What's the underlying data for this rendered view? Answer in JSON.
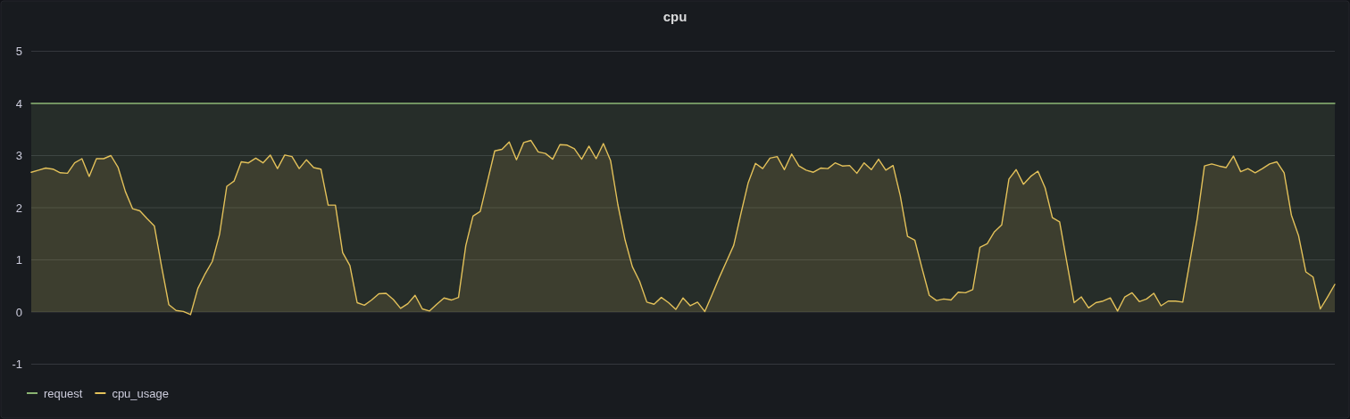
{
  "chart_data": {
    "type": "area",
    "title": "cpu",
    "categories": [
      null,
      null,
      null,
      null,
      null,
      null,
      null,
      null,
      null,
      null,
      null,
      null,
      null,
      null,
      null,
      null,
      null,
      null,
      null,
      null,
      null,
      null,
      null,
      null,
      null,
      null,
      null,
      null,
      null,
      null,
      null,
      null,
      null,
      null,
      null,
      null,
      null,
      null,
      null,
      null,
      null,
      null,
      null,
      null,
      null,
      null,
      null,
      null,
      null,
      null,
      null,
      null,
      null,
      null,
      null,
      null,
      null,
      null,
      null,
      null,
      null,
      null,
      null,
      null,
      null,
      null,
      null,
      null,
      null,
      null,
      null,
      null,
      null,
      null,
      null,
      null,
      null,
      null,
      null,
      null,
      null,
      null,
      null,
      null,
      null,
      null,
      null,
      null,
      null,
      null,
      null,
      null,
      null,
      null,
      null,
      null,
      null,
      null,
      null,
      null,
      null,
      null,
      null,
      null,
      null,
      null,
      null,
      null,
      null,
      null,
      null,
      null,
      null,
      null,
      null,
      null,
      null,
      null,
      null,
      null,
      null,
      null,
      null,
      null,
      null,
      null,
      null,
      null,
      null,
      null,
      null,
      null,
      null,
      null,
      null,
      null,
      null,
      null,
      null,
      null,
      null,
      null,
      null,
      null,
      null,
      null,
      null,
      null,
      null,
      null,
      null,
      null,
      null,
      null,
      null,
      null,
      null,
      null,
      null,
      null,
      null,
      null,
      null,
      null,
      null,
      null,
      null,
      null,
      null,
      null,
      null,
      null,
      null,
      null,
      null,
      null,
      null,
      null,
      null,
      null,
      null
    ],
    "series": [
      {
        "name": "request",
        "color": "#8ab472",
        "values": [
          4,
          4,
          4,
          4,
          4,
          4,
          4,
          4,
          4,
          4,
          4,
          4,
          4,
          4,
          4,
          4,
          4,
          4,
          4,
          4,
          4,
          4,
          4,
          4,
          4,
          4,
          4,
          4,
          4,
          4,
          4,
          4,
          4,
          4,
          4,
          4,
          4,
          4,
          4,
          4,
          4,
          4,
          4,
          4,
          4,
          4,
          4,
          4,
          4,
          4,
          4,
          4,
          4,
          4,
          4,
          4,
          4,
          4,
          4,
          4,
          4,
          4,
          4,
          4,
          4,
          4,
          4,
          4,
          4,
          4,
          4,
          4,
          4,
          4,
          4,
          4,
          4,
          4,
          4,
          4,
          4,
          4,
          4,
          4,
          4,
          4,
          4,
          4,
          4,
          4,
          4,
          4,
          4,
          4,
          4,
          4,
          4,
          4,
          4,
          4,
          4,
          4,
          4,
          4,
          4,
          4,
          4,
          4,
          4,
          4,
          4,
          4,
          4,
          4,
          4,
          4,
          4,
          4,
          4,
          4,
          4,
          4,
          4,
          4,
          4,
          4,
          4,
          4,
          4,
          4,
          4,
          4,
          4,
          4,
          4,
          4,
          4,
          4,
          4,
          4,
          4,
          4,
          4,
          4,
          4,
          4,
          4,
          4,
          4,
          4,
          4,
          4,
          4,
          4,
          4,
          4,
          4,
          4,
          4,
          4,
          4,
          4,
          4,
          4,
          4,
          4,
          4,
          4,
          4,
          4,
          4,
          4,
          4,
          4,
          4,
          4,
          4,
          4,
          4,
          4,
          4
        ]
      },
      {
        "name": "cpu_usage",
        "color": "#e3c15a",
        "values": [
          2.68,
          2.72,
          2.76,
          2.74,
          2.67,
          2.66,
          2.86,
          2.94,
          2.6,
          2.94,
          2.94,
          3.0,
          2.77,
          2.31,
          1.98,
          1.94,
          1.79,
          1.65,
          0.87,
          0.14,
          0.03,
          0.01,
          -0.05,
          0.45,
          0.73,
          0.97,
          1.49,
          2.41,
          2.51,
          2.88,
          2.86,
          2.95,
          2.86,
          3.01,
          2.75,
          3.01,
          2.98,
          2.75,
          2.92,
          2.77,
          2.74,
          2.05,
          2.05,
          1.14,
          0.89,
          0.18,
          0.13,
          0.23,
          0.35,
          0.36,
          0.24,
          0.07,
          0.16,
          0.32,
          0.06,
          0.02,
          0.15,
          0.27,
          0.23,
          0.28,
          1.27,
          1.84,
          1.93,
          2.51,
          3.09,
          3.12,
          3.26,
          2.92,
          3.25,
          3.29,
          3.07,
          3.04,
          2.93,
          3.21,
          3.2,
          3.13,
          2.93,
          3.18,
          2.94,
          3.23,
          2.9,
          2.06,
          1.38,
          0.87,
          0.59,
          0.19,
          0.15,
          0.28,
          0.18,
          0.05,
          0.27,
          0.12,
          0.19,
          0.01,
          0.33,
          0.66,
          0.97,
          1.28,
          1.89,
          2.48,
          2.85,
          2.75,
          2.95,
          2.98,
          2.73,
          3.03,
          2.8,
          2.72,
          2.68,
          2.76,
          2.75,
          2.86,
          2.8,
          2.81,
          2.66,
          2.86,
          2.73,
          2.93,
          2.72,
          2.81,
          2.23,
          1.45,
          1.38,
          0.84,
          0.32,
          0.22,
          0.25,
          0.23,
          0.38,
          0.37,
          0.43,
          1.24,
          1.31,
          1.54,
          1.67,
          2.55,
          2.73,
          2.45,
          2.6,
          2.7,
          2.38,
          1.81,
          1.73,
          0.95,
          0.18,
          0.29,
          0.08,
          0.18,
          0.21,
          0.27,
          0.02,
          0.29,
          0.37,
          0.2,
          0.25,
          0.36,
          0.12,
          0.21,
          0.21,
          0.19,
          0.98,
          1.79,
          2.8,
          2.84,
          2.8,
          2.77,
          2.99,
          2.69,
          2.75,
          2.67,
          2.75,
          2.84,
          2.88,
          2.67,
          1.86,
          1.46,
          0.77,
          0.67,
          0.06,
          0.29,
          0.53
        ]
      }
    ],
    "ylim": [
      -1,
      5
    ],
    "yticks": [
      -1,
      0,
      1,
      2,
      3,
      4,
      5
    ],
    "grid": "y",
    "legend": "bottom left",
    "tick_labels": "y"
  }
}
